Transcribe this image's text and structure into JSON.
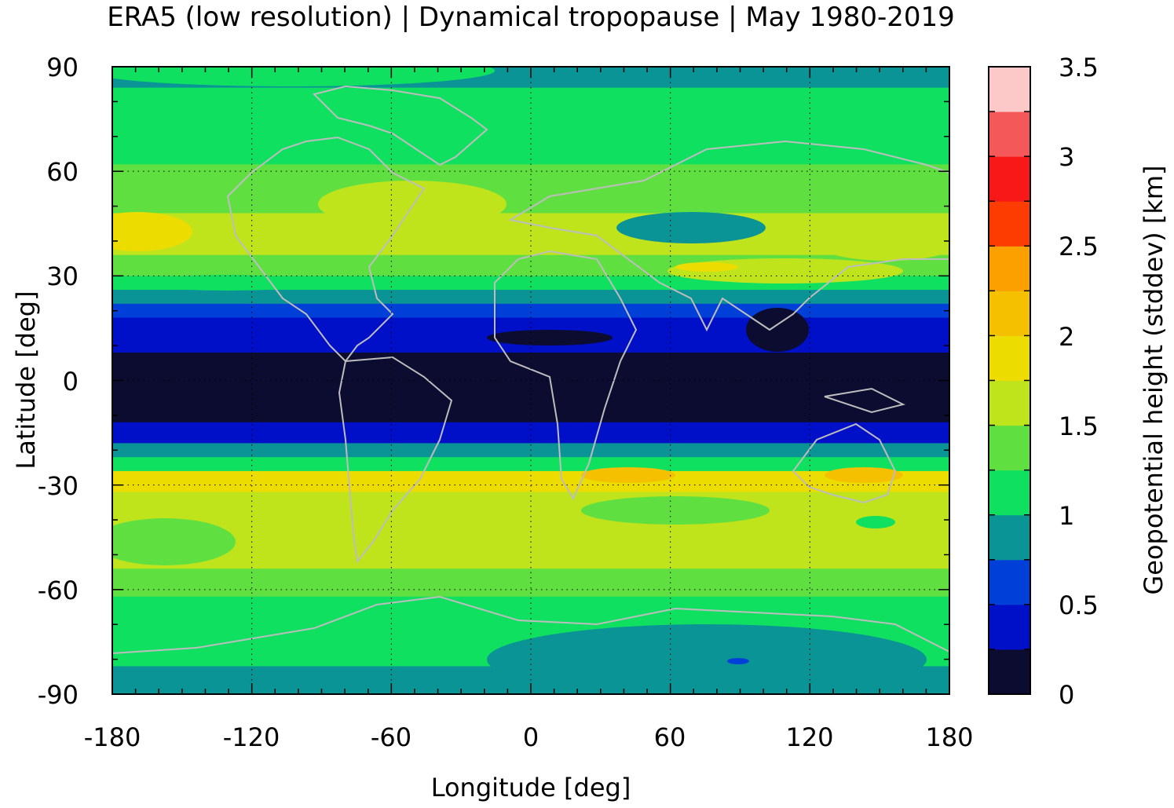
{
  "title": "ERA5 (low resolution) | Dynamical tropopause | May 1980-2019",
  "map": {
    "xlabel": "Longitude [deg]",
    "ylabel": "Latitude [deg]",
    "xlim": [
      -180,
      180
    ],
    "ylim": [
      -90,
      90
    ],
    "xticks": [
      "-180",
      "-120",
      "-60",
      "0",
      "60",
      "120",
      "180"
    ],
    "yticks": [
      "90",
      "60",
      "30",
      "0",
      "-30",
      "-60",
      "-90"
    ],
    "grid": true,
    "coastline_color": "#bdbdbd"
  },
  "colorbar": {
    "label": "Geopotential height (stddev) [km]",
    "range": [
      0,
      3.5
    ],
    "ticks": [
      "0",
      "0.5",
      "1",
      "1.5",
      "2",
      "2.5",
      "3",
      "3.5"
    ],
    "colors": [
      "#0c0c30",
      "#0010c8",
      "#0040d8",
      "#0a9496",
      "#10e060",
      "#60e040",
      "#c0e41c",
      "#ecdc00",
      "#f4c000",
      "#fca000",
      "#fc3c00",
      "#f81818",
      "#f45858",
      "#fcc8c8"
    ]
  },
  "chart_data": {
    "type": "heatmap",
    "variable": "Geopotential height (stddev) [km]",
    "lat_bands": [
      {
        "lat": [
          84,
          90
        ],
        "value": 0.9
      },
      {
        "lat": [
          70,
          84
        ],
        "value": 1.2
      },
      {
        "lat": [
          62,
          70
        ],
        "value": 1.1
      },
      {
        "lat": [
          48,
          62
        ],
        "value": 1.3
      },
      {
        "lat": [
          36,
          48
        ],
        "value": 1.6
      },
      {
        "lat": [
          30,
          36
        ],
        "value": 1.3
      },
      {
        "lat": [
          26,
          30
        ],
        "value": 1.1
      },
      {
        "lat": [
          22,
          26
        ],
        "value": 0.9
      },
      {
        "lat": [
          18,
          22
        ],
        "value": 0.6
      },
      {
        "lat": [
          8,
          18
        ],
        "value": 0.4
      },
      {
        "lat": [
          -12,
          8
        ],
        "value": 0.15
      },
      {
        "lat": [
          -18,
          -12
        ],
        "value": 0.4
      },
      {
        "lat": [
          -22,
          -18
        ],
        "value": 0.75
      },
      {
        "lat": [
          -26,
          -22
        ],
        "value": 1.2
      },
      {
        "lat": [
          -32,
          -26
        ],
        "value": 1.8
      },
      {
        "lat": [
          -38,
          -32
        ],
        "value": 1.6
      },
      {
        "lat": [
          -54,
          -38
        ],
        "value": 1.6
      },
      {
        "lat": [
          -62,
          -54
        ],
        "value": 1.3
      },
      {
        "lat": [
          -72,
          -62
        ],
        "value": 1.2
      },
      {
        "lat": [
          -82,
          -72
        ],
        "value": 1.1
      },
      {
        "lat": [
          -90,
          -82
        ],
        "value": 0.9
      }
    ]
  }
}
